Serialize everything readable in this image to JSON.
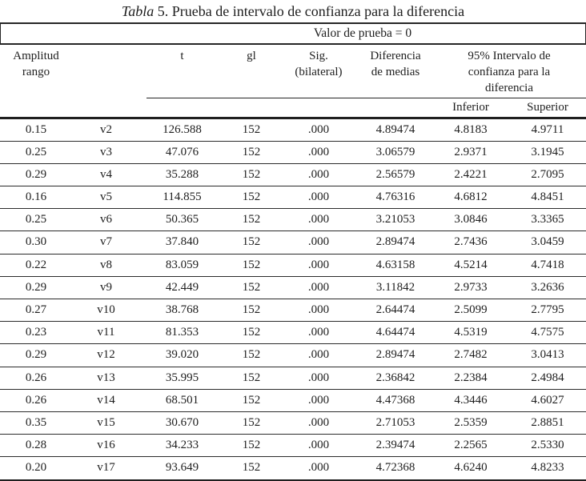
{
  "title": {
    "word_italic": "Tabla",
    "number": "5.",
    "text": "Prueba de intervalo de confianza para la diferencia"
  },
  "table": {
    "spanner_label": "Valor de prueba = 0",
    "header": {
      "amplitud": "Amplitud\nrango",
      "t": "t",
      "gl": "gl",
      "sig": "Sig.\n(bilateral)",
      "dif": "Diferencia\nde medias",
      "ci": "95% Intervalo de\nconfianza para la\ndiferencia",
      "inferior": "Inferior",
      "superior": "Superior"
    },
    "rows": [
      [
        "0.15",
        "v2",
        "126.588",
        "152",
        ".000",
        "4.89474",
        "4.8183",
        "4.9711"
      ],
      [
        "0.25",
        "v3",
        "47.076",
        "152",
        ".000",
        "3.06579",
        "2.9371",
        "3.1945"
      ],
      [
        "0.29",
        "v4",
        "35.288",
        "152",
        ".000",
        "2.56579",
        "2.4221",
        "2.7095"
      ],
      [
        "0.16",
        "v5",
        "114.855",
        "152",
        ".000",
        "4.76316",
        "4.6812",
        "4.8451"
      ],
      [
        "0.25",
        "v6",
        "50.365",
        "152",
        ".000",
        "3.21053",
        "3.0846",
        "3.3365"
      ],
      [
        "0.30",
        "v7",
        "37.840",
        "152",
        ".000",
        "2.89474",
        "2.7436",
        "3.0459"
      ],
      [
        "0.22",
        "v8",
        "83.059",
        "152",
        ".000",
        "4.63158",
        "4.5214",
        "4.7418"
      ],
      [
        "0.29",
        "v9",
        "42.449",
        "152",
        ".000",
        "3.11842",
        "2.9733",
        "3.2636"
      ],
      [
        "0.27",
        "v10",
        "38.768",
        "152",
        ".000",
        "2.64474",
        "2.5099",
        "2.7795"
      ],
      [
        "0.23",
        "v11",
        "81.353",
        "152",
        ".000",
        "4.64474",
        "4.5319",
        "4.7575"
      ],
      [
        "0.29",
        "v12",
        "39.020",
        "152",
        ".000",
        "2.89474",
        "2.7482",
        "3.0413"
      ],
      [
        "0.26",
        "v13",
        "35.995",
        "152",
        ".000",
        "2.36842",
        "2.2384",
        "2.4984"
      ],
      [
        "0.26",
        "v14",
        "68.501",
        "152",
        ".000",
        "4.47368",
        "4.3446",
        "4.6027"
      ],
      [
        "0.35",
        "v15",
        "30.670",
        "152",
        ".000",
        "2.71053",
        "2.5359",
        "2.8851"
      ],
      [
        "0.28",
        "v16",
        "34.233",
        "152",
        ".000",
        "2.39474",
        "2.2565",
        "2.5330"
      ],
      [
        "0.20",
        "v17",
        "93.649",
        "152",
        ".000",
        "4.72368",
        "4.6240",
        "4.8233"
      ]
    ]
  },
  "colors": {
    "text": "#1e1e1e",
    "rule": "#262626",
    "background": "#ffffff"
  }
}
